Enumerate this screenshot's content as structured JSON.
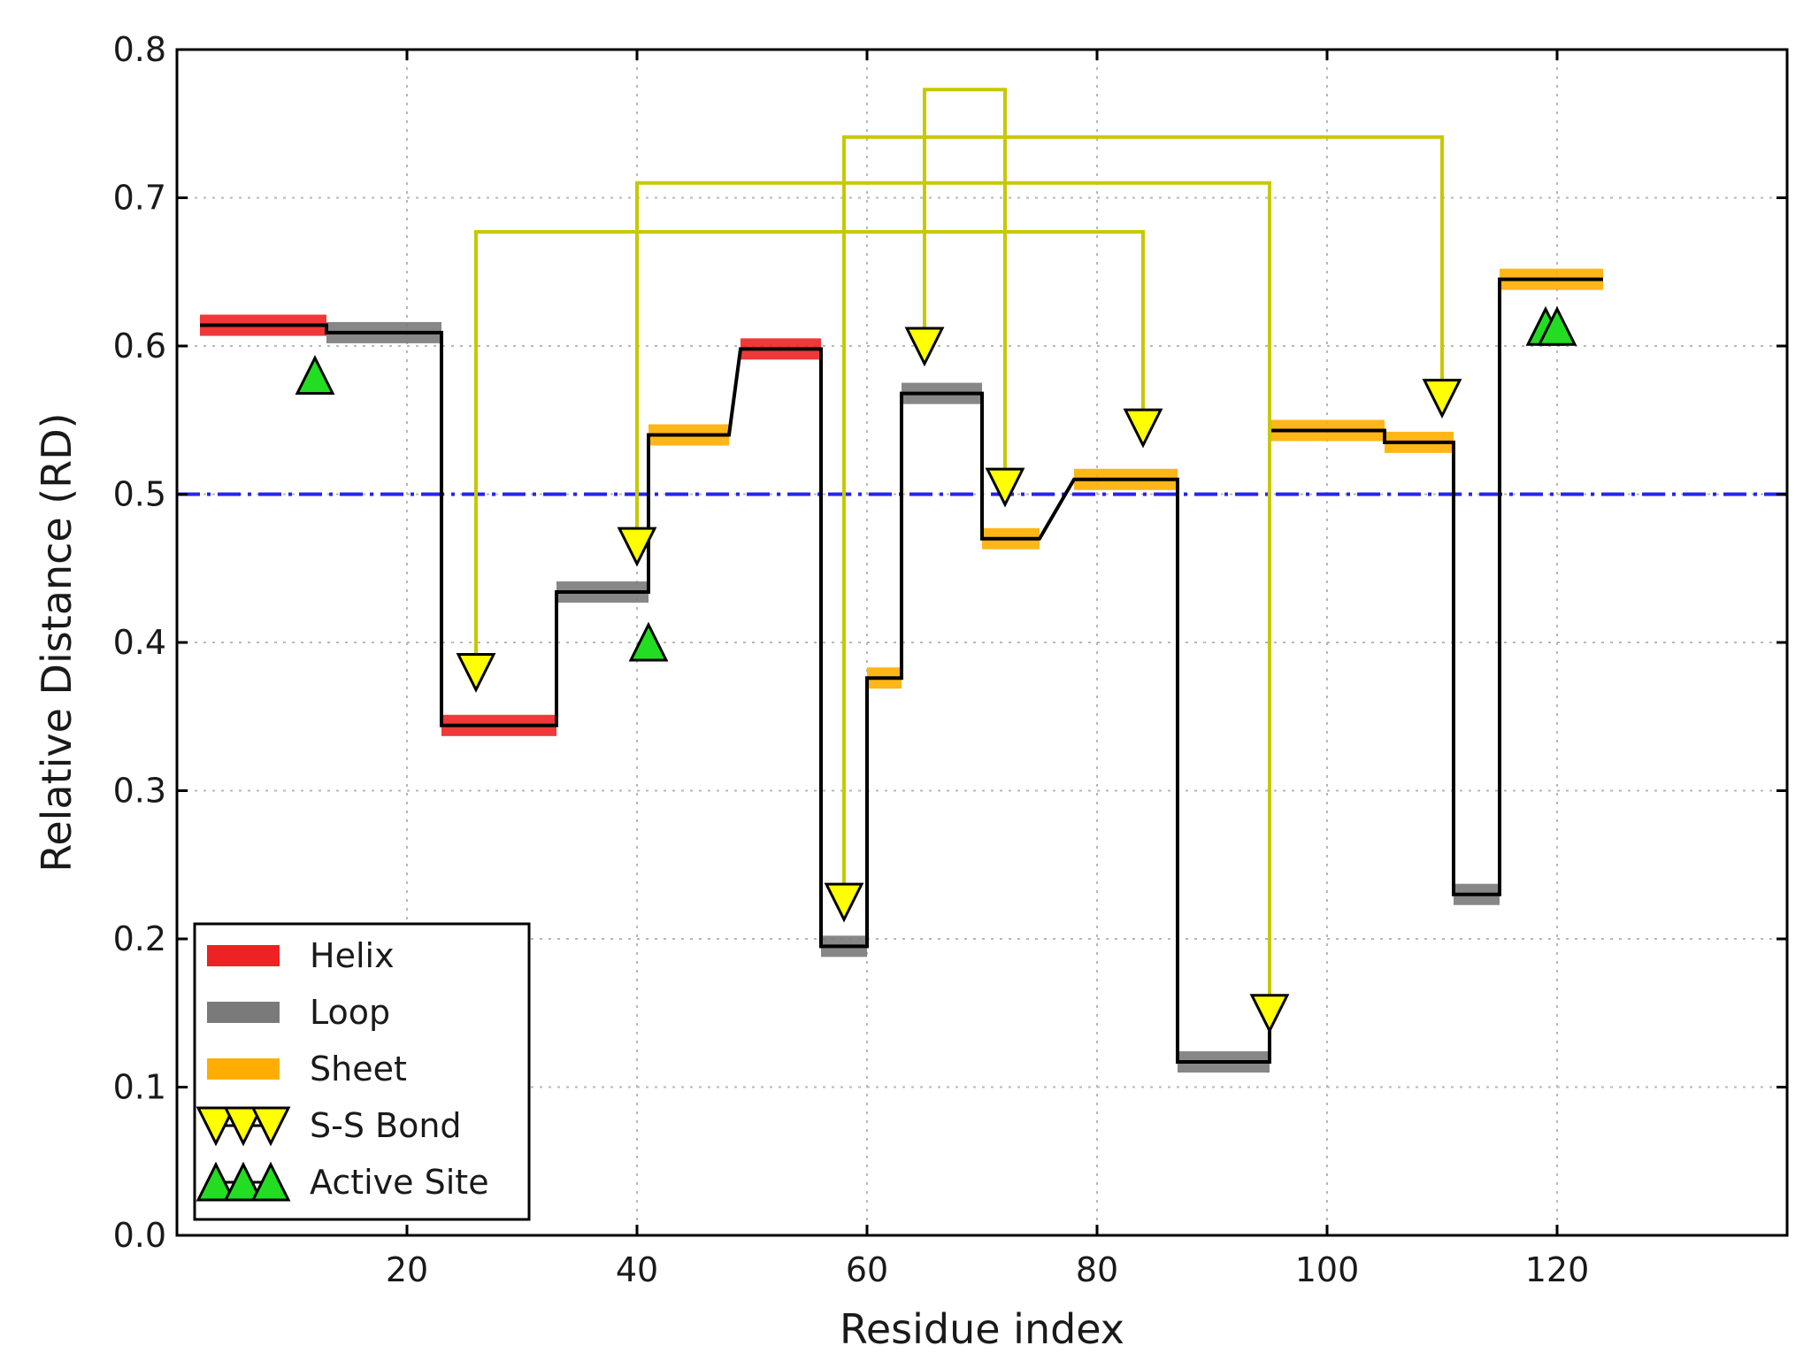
{
  "chart_data": {
    "type": "line",
    "title": "",
    "xlabel": "Residue index",
    "ylabel": "Relative Distance (RD)",
    "xlim": [
      0,
      140
    ],
    "ylim": [
      0.0,
      0.8
    ],
    "xticks": [
      20,
      40,
      60,
      80,
      100,
      120
    ],
    "xtick_labels": [
      "20",
      "40",
      "60",
      "80",
      "100",
      "120"
    ],
    "yticks": [
      0.0,
      0.1,
      0.2,
      0.3,
      0.4,
      0.5,
      0.6,
      0.7,
      0.8
    ],
    "ytick_labels": [
      "0.0",
      "0.1",
      "0.2",
      "0.3",
      "0.4",
      "0.5",
      "0.6",
      "0.7",
      "0.8"
    ],
    "grid": true,
    "threshold": {
      "y": 0.5,
      "color": "#2424ee",
      "style": "dash-dot"
    },
    "legend": {
      "position": "lower-left",
      "entries": [
        {
          "label": "Helix",
          "kind": "band",
          "color": "#ee2222"
        },
        {
          "label": "Loop",
          "kind": "band",
          "color": "#7a7a7a"
        },
        {
          "label": "Sheet",
          "kind": "band",
          "color": "#ffae00"
        },
        {
          "label": "S-S Bond",
          "kind": "triangle-down",
          "color": "#ffff00"
        },
        {
          "label": "Active Site",
          "kind": "triangle-up",
          "color": "#22dd22"
        }
      ]
    },
    "segment_colors": {
      "Helix": "#ee2222",
      "Loop": "#7a7a7a",
      "Sheet": "#ffae00"
    },
    "segments": [
      {
        "type": "Helix",
        "x_start": 2,
        "x_end": 13,
        "y": 0.614
      },
      {
        "type": "Loop",
        "x_start": 13,
        "x_end": 23,
        "y": 0.609
      },
      {
        "type": "Helix",
        "x_start": 23,
        "x_end": 33,
        "y": 0.344
      },
      {
        "type": "Loop",
        "x_start": 33,
        "x_end": 41,
        "y": 0.434
      },
      {
        "type": "Sheet",
        "x_start": 41,
        "x_end": 48,
        "y": 0.54
      },
      {
        "type": "Helix",
        "x_start": 49,
        "x_end": 56,
        "y": 0.598
      },
      {
        "type": "Loop",
        "x_start": 56,
        "x_end": 60,
        "y": 0.195
      },
      {
        "type": "Sheet",
        "x_start": 60,
        "x_end": 63,
        "y": 0.376
      },
      {
        "type": "Loop",
        "x_start": 63,
        "x_end": 70,
        "y": 0.568
      },
      {
        "type": "Sheet",
        "x_start": 70,
        "x_end": 75,
        "y": 0.47
      },
      {
        "type": "Sheet",
        "x_start": 78,
        "x_end": 87,
        "y": 0.51
      },
      {
        "type": "Loop",
        "x_start": 87,
        "x_end": 95,
        "y": 0.117
      },
      {
        "type": "Sheet",
        "x_start": 95,
        "x_end": 105,
        "y": 0.543
      },
      {
        "type": "Sheet",
        "x_start": 105,
        "x_end": 111,
        "y": 0.535
      },
      {
        "type": "Loop",
        "x_start": 111,
        "x_end": 115,
        "y": 0.23
      },
      {
        "type": "Sheet",
        "x_start": 115,
        "x_end": 124,
        "y": 0.645
      }
    ],
    "rd_profile": {
      "x": [
        2,
        13,
        13,
        23,
        23,
        33,
        33,
        41,
        41,
        48,
        49,
        56,
        56,
        60,
        60,
        63,
        63,
        70,
        70,
        75,
        78,
        87,
        87,
        95,
        95,
        105,
        105,
        111,
        111,
        115,
        115,
        124
      ],
      "y": [
        0.614,
        0.614,
        0.609,
        0.609,
        0.344,
        0.344,
        0.434,
        0.434,
        0.54,
        0.54,
        0.598,
        0.598,
        0.195,
        0.195,
        0.376,
        0.376,
        0.568,
        0.568,
        0.47,
        0.47,
        0.51,
        0.51,
        0.117,
        0.117,
        0.543,
        0.543,
        0.535,
        0.535,
        0.23,
        0.23,
        0.645,
        0.645
      ]
    },
    "ss_bonds": [
      {
        "res_a": 26,
        "res_b": 84,
        "marker_y_a": 0.38,
        "marker_y_b": 0.545,
        "link_y": 0.677
      },
      {
        "res_a": 40,
        "res_b": 95,
        "marker_y_a": 0.465,
        "marker_y_b": 0.15,
        "link_y": 0.71
      },
      {
        "res_a": 58,
        "res_b": 110,
        "marker_y_a": 0.225,
        "marker_y_b": 0.565,
        "link_y": 0.741
      },
      {
        "res_a": 65,
        "res_b": 72,
        "marker_y_a": 0.6,
        "marker_y_b": 0.505,
        "link_y": 0.773
      }
    ],
    "ss_bond_color": "#c8c800",
    "active_sites": [
      {
        "residue": 12,
        "y": 0.58
      },
      {
        "residue": 41,
        "y": 0.4
      },
      {
        "residue": 119,
        "y": 0.613
      },
      {
        "residue": 120,
        "y": 0.613
      }
    ]
  }
}
